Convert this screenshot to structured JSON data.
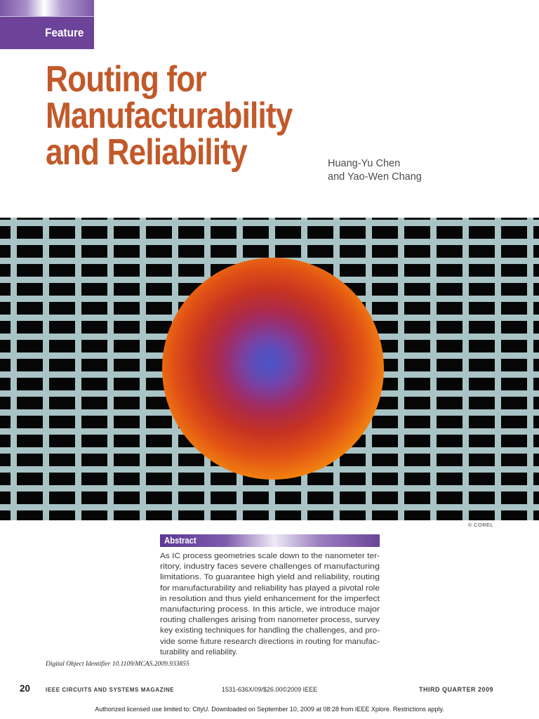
{
  "feature_banner": {
    "label": "Feature"
  },
  "title": {
    "lines": [
      "Routing for",
      "Manufacturability",
      "and Reliability"
    ]
  },
  "authors": {
    "line1": "Huang-Yu Chen",
    "line2": "and Yao-Wen Chang"
  },
  "hero_image": {
    "credit": "© COREL"
  },
  "abstract": {
    "heading": "Abstract",
    "lines": [
      "As IC process geometries scale down to the nanometer ter-",
      "ritory, industry faces severe challenges of manufacturing",
      "limitations. To guarantee high yield and reliability, routing",
      "for manufacturability and reliability has played a pivotal role",
      "in resolution and thus yield enhancement for the imperfect",
      "manufacturing process. In this article, we introduce major",
      "routing challenges arising from nanometer process, survey",
      "key existing techniques for handling the challenges, and pro-",
      "vide some future research directions in routing for manufac-",
      "turability and reliability."
    ]
  },
  "doi": "Digital Object Identifier 10.1109/MCAS.2009.933855",
  "footer": {
    "page_number": "20",
    "journal": "IEEE CIRCUITS AND SYSTEMS MAGAZINE",
    "issn": "1531-636X/09/$26.00©2009 IEEE",
    "issue": "THIRD QUARTER 2009",
    "license": "Authorized licensed use limited to: CityU. Downloaded on September 10, 2009 at 08:28 from IEEE Xplore.  Restrictions apply."
  },
  "colors": {
    "banner_purple": "#6c4399",
    "title_orange": "#c2592a",
    "mesh_line": "#a9c4c7",
    "mesh_background": "#060606",
    "blob_center_blue": "#4d55c5",
    "blob_edge_yellow": "#f0d806"
  }
}
